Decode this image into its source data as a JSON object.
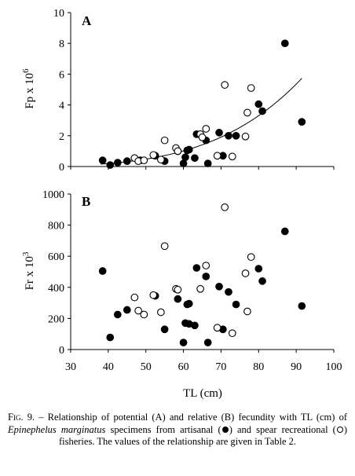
{
  "chart_data": [
    {
      "type": "scatter",
      "panel_label": "A",
      "ylabel_base": "Fp x 10",
      "ylabel_exp": "6",
      "xlabel": "",
      "xlim": [
        30,
        100
      ],
      "ylim": [
        0,
        10
      ],
      "yticks": [
        0,
        2,
        4,
        6,
        8,
        10
      ],
      "grid": false,
      "series": [
        {
          "name": "artisanal",
          "marker": "filled",
          "points": [
            [
              38.5,
              0.4
            ],
            [
              40.5,
              0.1
            ],
            [
              42.5,
              0.25
            ],
            [
              45,
              0.35
            ],
            [
              48.5,
              0.4
            ],
            [
              52.5,
              0.7
            ],
            [
              55,
              0.35
            ],
            [
              58.5,
              1.0
            ],
            [
              60,
              0.2
            ],
            [
              60.5,
              0.6
            ],
            [
              61,
              1.05
            ],
            [
              61.5,
              1.1
            ],
            [
              63,
              0.55
            ],
            [
              63.5,
              2.1
            ],
            [
              66,
              1.7
            ],
            [
              66.5,
              0.2
            ],
            [
              69.5,
              2.2
            ],
            [
              70.5,
              0.7
            ],
            [
              72,
              2.0
            ],
            [
              74,
              2.0
            ],
            [
              80,
              4.05
            ],
            [
              81,
              3.6
            ],
            [
              87,
              8.0
            ],
            [
              91.5,
              2.9
            ]
          ]
        },
        {
          "name": "spear recreational",
          "marker": "open",
          "points": [
            [
              47,
              0.55
            ],
            [
              48,
              0.35
            ],
            [
              49.5,
              0.4
            ],
            [
              52,
              0.75
            ],
            [
              54,
              0.45
            ],
            [
              55,
              1.7
            ],
            [
              58,
              1.2
            ],
            [
              58.5,
              1.0
            ],
            [
              64.5,
              2.1
            ],
            [
              65,
              1.9
            ],
            [
              66,
              2.45
            ],
            [
              69,
              0.7
            ],
            [
              71,
              5.3
            ],
            [
              73,
              0.65
            ],
            [
              76.5,
              1.95
            ],
            [
              77,
              3.5
            ],
            [
              78,
              5.1
            ]
          ]
        }
      ],
      "fit_curve": {
        "type": "power",
        "a": 5.2e-08,
        "b": 4.1,
        "x_range": [
          38,
          91.5
        ]
      }
    },
    {
      "type": "scatter",
      "panel_label": "B",
      "ylabel_base": "Fr x 10",
      "ylabel_exp": "3",
      "xlabel": "TL (cm)",
      "xlim": [
        30,
        100
      ],
      "ylim": [
        0,
        1000
      ],
      "xticks": [
        30,
        40,
        50,
        60,
        70,
        80,
        90,
        100
      ],
      "yticks": [
        0,
        200,
        400,
        600,
        800,
        1000
      ],
      "grid": false,
      "series": [
        {
          "name": "artisanal",
          "marker": "filled",
          "points": [
            [
              38.5,
              505
            ],
            [
              40.5,
              78
            ],
            [
              42.5,
              225
            ],
            [
              45,
              255
            ],
            [
              52.5,
              345
            ],
            [
              55,
              130
            ],
            [
              58.5,
              325
            ],
            [
              60,
              45
            ],
            [
              60.5,
              170
            ],
            [
              61,
              290
            ],
            [
              61.5,
              295
            ],
            [
              61.5,
              165
            ],
            [
              63,
              155
            ],
            [
              63.5,
              525
            ],
            [
              66,
              470
            ],
            [
              66.5,
              45
            ],
            [
              69.5,
              405
            ],
            [
              70.5,
              130
            ],
            [
              72,
              370
            ],
            [
              74,
              290
            ],
            [
              80,
              520
            ],
            [
              81,
              440
            ],
            [
              87,
              760
            ],
            [
              91.5,
              280
            ]
          ]
        },
        {
          "name": "spear recreational",
          "marker": "open",
          "points": [
            [
              47,
              335
            ],
            [
              48,
              250
            ],
            [
              49.5,
              225
            ],
            [
              52,
              350
            ],
            [
              54,
              240
            ],
            [
              55,
              665
            ],
            [
              58,
              390
            ],
            [
              58.5,
              385
            ],
            [
              64.5,
              390
            ],
            [
              66,
              540
            ],
            [
              69,
              140
            ],
            [
              71,
              915
            ],
            [
              73,
              105
            ],
            [
              76.5,
              490
            ],
            [
              78,
              595
            ],
            [
              77,
              245
            ]
          ]
        }
      ]
    }
  ],
  "caption": {
    "fig_label": "Fig. 9.",
    "part1": " – Relationship of potential (A) and relative (B) fecundity with TL (cm) of ",
    "species": "Epinephelus marginatus",
    "part2": " specimens from artisanal (",
    "part3": ") and spear recreational (",
    "part4": ") fisheries. The values of the relationship are given in Table 2."
  }
}
